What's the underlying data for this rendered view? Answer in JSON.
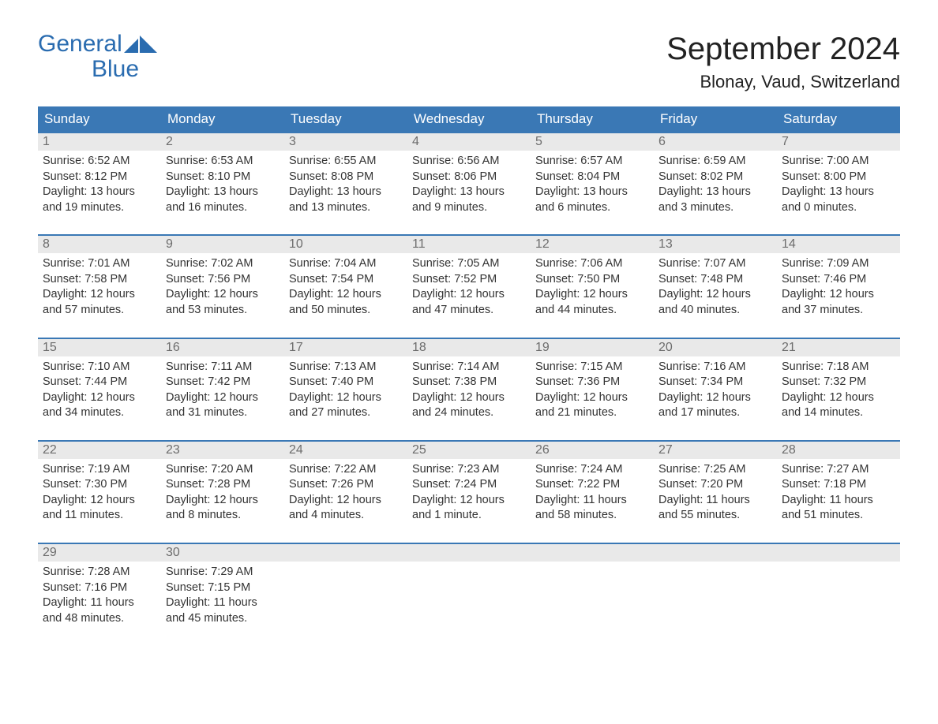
{
  "logo": {
    "word1": "General",
    "word2": "Blue",
    "accent_color": "#2a6cb0"
  },
  "title": "September 2024",
  "location": "Blonay, Vaud, Switzerland",
  "colors": {
    "header_bg": "#3a78b5",
    "header_text": "#ffffff",
    "daynum_bg": "#e9e9e9",
    "daynum_text": "#6d6d6d",
    "row_border": "#3a78b5",
    "body_text": "#333333",
    "page_bg": "#ffffff"
  },
  "weekdays": [
    "Sunday",
    "Monday",
    "Tuesday",
    "Wednesday",
    "Thursday",
    "Friday",
    "Saturday"
  ],
  "weeks": [
    [
      {
        "num": "1",
        "sunrise": "6:52 AM",
        "sunset": "8:12 PM",
        "daylight": "13 hours and 19 minutes."
      },
      {
        "num": "2",
        "sunrise": "6:53 AM",
        "sunset": "8:10 PM",
        "daylight": "13 hours and 16 minutes."
      },
      {
        "num": "3",
        "sunrise": "6:55 AM",
        "sunset": "8:08 PM",
        "daylight": "13 hours and 13 minutes."
      },
      {
        "num": "4",
        "sunrise": "6:56 AM",
        "sunset": "8:06 PM",
        "daylight": "13 hours and 9 minutes."
      },
      {
        "num": "5",
        "sunrise": "6:57 AM",
        "sunset": "8:04 PM",
        "daylight": "13 hours and 6 minutes."
      },
      {
        "num": "6",
        "sunrise": "6:59 AM",
        "sunset": "8:02 PM",
        "daylight": "13 hours and 3 minutes."
      },
      {
        "num": "7",
        "sunrise": "7:00 AM",
        "sunset": "8:00 PM",
        "daylight": "13 hours and 0 minutes."
      }
    ],
    [
      {
        "num": "8",
        "sunrise": "7:01 AM",
        "sunset": "7:58 PM",
        "daylight": "12 hours and 57 minutes."
      },
      {
        "num": "9",
        "sunrise": "7:02 AM",
        "sunset": "7:56 PM",
        "daylight": "12 hours and 53 minutes."
      },
      {
        "num": "10",
        "sunrise": "7:04 AM",
        "sunset": "7:54 PM",
        "daylight": "12 hours and 50 minutes."
      },
      {
        "num": "11",
        "sunrise": "7:05 AM",
        "sunset": "7:52 PM",
        "daylight": "12 hours and 47 minutes."
      },
      {
        "num": "12",
        "sunrise": "7:06 AM",
        "sunset": "7:50 PM",
        "daylight": "12 hours and 44 minutes."
      },
      {
        "num": "13",
        "sunrise": "7:07 AM",
        "sunset": "7:48 PM",
        "daylight": "12 hours and 40 minutes."
      },
      {
        "num": "14",
        "sunrise": "7:09 AM",
        "sunset": "7:46 PM",
        "daylight": "12 hours and 37 minutes."
      }
    ],
    [
      {
        "num": "15",
        "sunrise": "7:10 AM",
        "sunset": "7:44 PM",
        "daylight": "12 hours and 34 minutes."
      },
      {
        "num": "16",
        "sunrise": "7:11 AM",
        "sunset": "7:42 PM",
        "daylight": "12 hours and 31 minutes."
      },
      {
        "num": "17",
        "sunrise": "7:13 AM",
        "sunset": "7:40 PM",
        "daylight": "12 hours and 27 minutes."
      },
      {
        "num": "18",
        "sunrise": "7:14 AM",
        "sunset": "7:38 PM",
        "daylight": "12 hours and 24 minutes."
      },
      {
        "num": "19",
        "sunrise": "7:15 AM",
        "sunset": "7:36 PM",
        "daylight": "12 hours and 21 minutes."
      },
      {
        "num": "20",
        "sunrise": "7:16 AM",
        "sunset": "7:34 PM",
        "daylight": "12 hours and 17 minutes."
      },
      {
        "num": "21",
        "sunrise": "7:18 AM",
        "sunset": "7:32 PM",
        "daylight": "12 hours and 14 minutes."
      }
    ],
    [
      {
        "num": "22",
        "sunrise": "7:19 AM",
        "sunset": "7:30 PM",
        "daylight": "12 hours and 11 minutes."
      },
      {
        "num": "23",
        "sunrise": "7:20 AM",
        "sunset": "7:28 PM",
        "daylight": "12 hours and 8 minutes."
      },
      {
        "num": "24",
        "sunrise": "7:22 AM",
        "sunset": "7:26 PM",
        "daylight": "12 hours and 4 minutes."
      },
      {
        "num": "25",
        "sunrise": "7:23 AM",
        "sunset": "7:24 PM",
        "daylight": "12 hours and 1 minute."
      },
      {
        "num": "26",
        "sunrise": "7:24 AM",
        "sunset": "7:22 PM",
        "daylight": "11 hours and 58 minutes."
      },
      {
        "num": "27",
        "sunrise": "7:25 AM",
        "sunset": "7:20 PM",
        "daylight": "11 hours and 55 minutes."
      },
      {
        "num": "28",
        "sunrise": "7:27 AM",
        "sunset": "7:18 PM",
        "daylight": "11 hours and 51 minutes."
      }
    ],
    [
      {
        "num": "29",
        "sunrise": "7:28 AM",
        "sunset": "7:16 PM",
        "daylight": "11 hours and 48 minutes."
      },
      {
        "num": "30",
        "sunrise": "7:29 AM",
        "sunset": "7:15 PM",
        "daylight": "11 hours and 45 minutes."
      },
      null,
      null,
      null,
      null,
      null
    ]
  ],
  "labels": {
    "sunrise": "Sunrise: ",
    "sunset": "Sunset: ",
    "daylight": "Daylight: "
  }
}
